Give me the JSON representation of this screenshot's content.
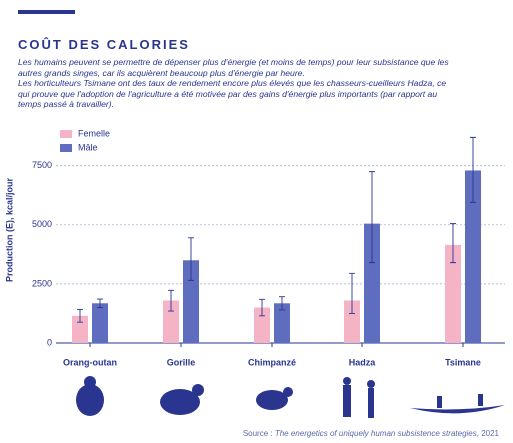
{
  "chart_data": {
    "type": "bar",
    "title": "COÛT DES CALORIES",
    "subtitle": [
      "Les humains peuvent se permettre de dépenser plus d'énergie (et moins de temps) pour leur subsistance que les autres grands singes, car ils acquièrent beaucoup plus d'énergie par heure.",
      "Les horticulteurs Tsimane ont des taux de rendement encore plus élevés que les chasseurs-cueilleurs Hadza, ce qui prouve que l'adoption de l'agriculture a été motivée par des gains d'énergie plus importants (par rapport au temps passé à travailler)."
    ],
    "y_label": "Production (E), kcal/jour",
    "categories": [
      "Orang-outan",
      "Gorille",
      "Chimpanzé",
      "Hadza",
      "Tsimane"
    ],
    "series": [
      {
        "name": "Femelle",
        "color": "#f5b3c6",
        "values": [
          1150,
          1800,
          1500,
          1800,
          4150
        ],
        "errors": [
          [
            270,
            270
          ],
          [
            450,
            430
          ],
          [
            350,
            350
          ],
          [
            550,
            1150
          ],
          [
            750,
            900
          ]
        ]
      },
      {
        "name": "Mâle",
        "color": "#5f6dbf",
        "values": [
          1680,
          3500,
          1680,
          5050,
          7300
        ],
        "errors": [
          [
            180,
            180
          ],
          [
            850,
            950
          ],
          [
            280,
            280
          ],
          [
            1650,
            2200
          ],
          [
            1350,
            1400
          ]
        ]
      }
    ],
    "ylim": [
      0,
      8800
    ],
    "yticks": [
      0,
      2500,
      5000,
      7500
    ],
    "grid": true,
    "source": [
      "Source :",
      "The energetics of uniquely human subsistence strategies",
      ", 2021"
    ]
  }
}
